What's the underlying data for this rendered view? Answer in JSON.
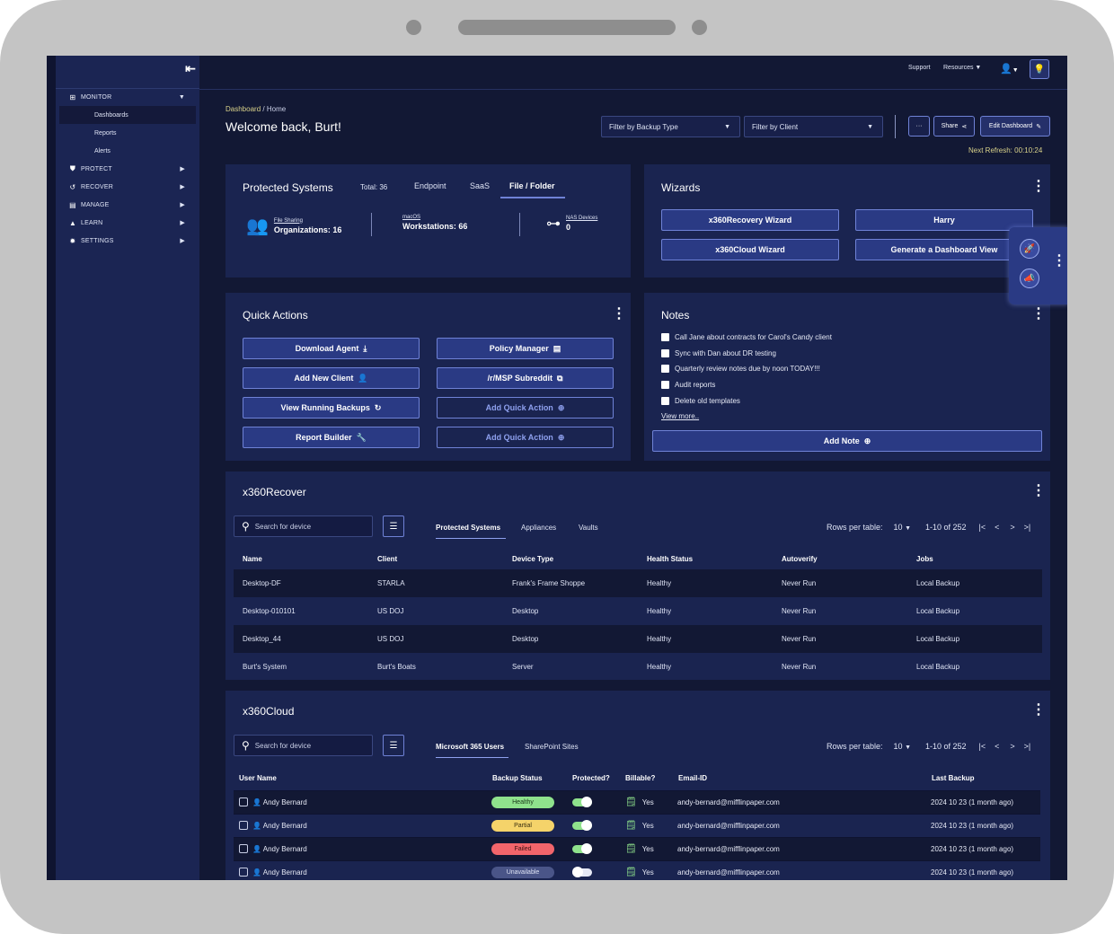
{
  "colors": {
    "accent": "#6f82d6",
    "healthy": "#8fe28c",
    "partial": "#f5d36a",
    "failed": "#f2656b",
    "unavailable": "#4a5588"
  },
  "sidebar": {
    "items": [
      {
        "label": "MONITOR",
        "icon": "monitor-icon",
        "open": true
      },
      {
        "label": "PROTECT",
        "icon": "shield-icon"
      },
      {
        "label": "RECOVER",
        "icon": "recover-icon"
      },
      {
        "label": "MANAGE",
        "icon": "manage-icon"
      },
      {
        "label": "LEARN",
        "icon": "learn-icon"
      },
      {
        "label": "SETTINGS",
        "icon": "gear-icon"
      }
    ],
    "monitor_sub": [
      "Dashboards",
      "Reports",
      "Alerts"
    ]
  },
  "topbar": {
    "support": "Support",
    "resources": "Resources"
  },
  "header": {
    "breadcrumb_active": "Dashboard",
    "breadcrumb_sep": "/",
    "breadcrumb_current": "Home",
    "welcome": "Welcome back, Burt!",
    "filter_backup_type": "Filter by Backup Type",
    "filter_client": "Filter by Client",
    "more": "···",
    "share": "Share",
    "edit_dashboard": "Edit Dashboard",
    "next_refresh_label": "Next Refresh:",
    "next_refresh_value": "00:10:24"
  },
  "protected_systems": {
    "title": "Protected Systems",
    "total": "Total: 36",
    "tabs": [
      "Endpoint",
      "SaaS",
      "File / Folder"
    ],
    "stats": [
      {
        "label": "File Sharing",
        "value": "Organizations: 16"
      },
      {
        "label": "macOS",
        "value": "Workstations: 66"
      },
      {
        "label": "NAS Devices",
        "value": "0"
      }
    ]
  },
  "wizards": {
    "title": "Wizards",
    "buttons": [
      "x360Recovery Wizard",
      "Harry",
      "x360Cloud Wizard",
      "Generate a Dashboard View"
    ]
  },
  "quick_actions": {
    "title": "Quick Actions",
    "buttons": [
      "Download Agent",
      "Policy Manager",
      "Add New Client",
      "/r/MSP Subreddit",
      "View Running Backups",
      "Add Quick Action",
      "Report Builder",
      "Add Quick Action"
    ]
  },
  "notes": {
    "title": "Notes",
    "items": [
      "Call Jane about contracts for Carol's Candy client",
      "Sync with Dan about DR testing",
      "Quarterly review notes due by noon TODAY!!!",
      "Audit reports",
      "Delete old templates"
    ],
    "view_more": "View more..",
    "add_note": "Add Note"
  },
  "x360recover": {
    "title": "x360Recover",
    "search_placeholder": "Search for device",
    "tabs": [
      "Protected Systems",
      "Appliances",
      "Vaults"
    ],
    "rows_per_table_label": "Rows per table:",
    "rows_per_table_value": "10",
    "range": "1-10 of 252",
    "columns": [
      "Name",
      "Client",
      "Device Type",
      "Health Status",
      "Autoverify",
      "Jobs"
    ],
    "rows": [
      [
        "Desktop-DF",
        "STARLA",
        "Frank's Frame Shoppe",
        "Healthy",
        "Never Run",
        "Local Backup"
      ],
      [
        "Desktop-010101",
        "US DOJ",
        "Desktop",
        "Healthy",
        "Never Run",
        "Local Backup"
      ],
      [
        "Desktop_44",
        "US DOJ",
        "Desktop",
        "Healthy",
        "Never Run",
        "Local Backup"
      ],
      [
        "Burt's System",
        "Burt's Boats",
        "Server",
        "Healthy",
        "Never Run",
        "Local Backup"
      ]
    ]
  },
  "x360cloud": {
    "title": "x360Cloud",
    "search_placeholder": "Search for device",
    "tabs": [
      "Microsoft 365 Users",
      "SharePoint Sites"
    ],
    "rows_per_table_label": "Rows per table:",
    "rows_per_table_value": "10",
    "range": "1-10 of 252",
    "columns": [
      "User Name",
      "Backup Status",
      "Protected?",
      "Billable?",
      "Email-ID",
      "Last Backup"
    ],
    "rows": [
      {
        "user": "Andy Bernard",
        "status": "Healthy",
        "protected": true,
        "billable": "Yes",
        "email": "andy-bernard@mifflinpaper.com",
        "last": "2024 10 23 (1 month ago)"
      },
      {
        "user": "Andy Bernard",
        "status": "Partial",
        "protected": true,
        "billable": "Yes",
        "email": "andy-bernard@mifflinpaper.com",
        "last": "2024 10 23 (1 month ago)"
      },
      {
        "user": "Andy Bernard",
        "status": "Failed",
        "protected": true,
        "billable": "Yes",
        "email": "andy-bernard@mifflinpaper.com",
        "last": "2024 10 23 (1 month ago)"
      },
      {
        "user": "Andy Bernard",
        "status": "Unavailable",
        "protected": false,
        "billable": "Yes",
        "email": "andy-bernard@mifflinpaper.com",
        "last": "2024 10 23 (1 month ago)"
      }
    ]
  }
}
